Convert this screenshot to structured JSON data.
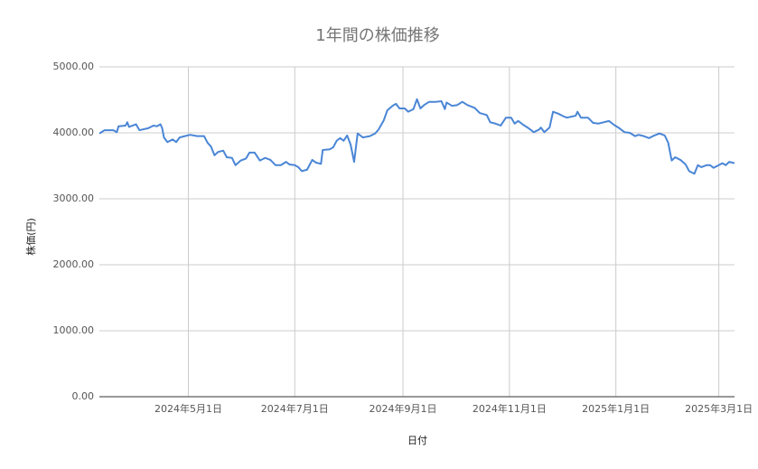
{
  "chart_data": {
    "type": "line",
    "title": "1年間の株価推移",
    "x_label": "日付",
    "y_label": "株価(円)",
    "x": [
      "2024-03-11",
      "2024-03-14",
      "2024-03-19",
      "2024-03-21",
      "2024-03-22",
      "2024-03-26",
      "2024-03-27",
      "2024-03-28",
      "2024-04-01",
      "2024-04-03",
      "2024-04-08",
      "2024-04-11",
      "2024-04-13",
      "2024-04-15",
      "2024-04-16",
      "2024-04-17",
      "2024-04-19",
      "2024-04-22",
      "2024-04-24",
      "2024-04-26",
      "2024-04-29",
      "2024-05-02",
      "2024-05-06",
      "2024-05-10",
      "2024-05-12",
      "2024-05-14",
      "2024-05-16",
      "2024-05-18",
      "2024-05-21",
      "2024-05-23",
      "2024-05-26",
      "2024-05-28",
      "2024-05-31",
      "2024-06-03",
      "2024-06-05",
      "2024-06-08",
      "2024-06-11",
      "2024-06-14",
      "2024-06-17",
      "2024-06-20",
      "2024-06-23",
      "2024-06-26",
      "2024-06-28",
      "2024-07-01",
      "2024-07-03",
      "2024-07-05",
      "2024-07-08",
      "2024-07-11",
      "2024-07-13",
      "2024-07-16",
      "2024-07-17",
      "2024-07-21",
      "2024-07-23",
      "2024-07-25",
      "2024-07-27",
      "2024-07-29",
      "2024-07-31",
      "2024-08-02",
      "2024-08-04",
      "2024-08-06",
      "2024-08-09",
      "2024-08-13",
      "2024-08-16",
      "2024-08-18",
      "2024-08-21",
      "2024-08-23",
      "2024-08-26",
      "2024-08-28",
      "2024-08-30",
      "2024-09-02",
      "2024-09-04",
      "2024-09-07",
      "2024-09-09",
      "2024-09-11",
      "2024-09-13",
      "2024-09-16",
      "2024-09-20",
      "2024-09-23",
      "2024-09-25",
      "2024-09-26",
      "2024-09-29",
      "2024-10-02",
      "2024-10-05",
      "2024-10-08",
      "2024-10-12",
      "2024-10-15",
      "2024-10-19",
      "2024-10-21",
      "2024-10-24",
      "2024-10-27",
      "2024-10-30",
      "2024-11-02",
      "2024-11-04",
      "2024-11-06",
      "2024-11-09",
      "2024-11-12",
      "2024-11-15",
      "2024-11-18",
      "2024-11-19",
      "2024-11-21",
      "2024-11-24",
      "2024-11-26",
      "2024-11-29",
      "2024-12-02",
      "2024-12-04",
      "2024-12-09",
      "2024-12-10",
      "2024-12-12",
      "2024-12-16",
      "2024-12-19",
      "2024-12-22",
      "2024-12-25",
      "2024-12-28",
      "2024-12-31",
      "2025-01-03",
      "2025-01-06",
      "2025-01-09",
      "2025-01-12",
      "2025-01-14",
      "2025-01-17",
      "2025-01-20",
      "2025-01-23",
      "2025-01-26",
      "2025-01-29",
      "2025-01-31",
      "2025-02-02",
      "2025-02-04",
      "2025-02-07",
      "2025-02-10",
      "2025-02-12",
      "2025-02-15",
      "2025-02-17",
      "2025-02-19",
      "2025-02-22",
      "2025-02-24",
      "2025-02-26",
      "2025-03-01",
      "2025-03-03",
      "2025-03-05",
      "2025-03-07",
      "2025-03-10"
    ],
    "series": [
      {
        "name": "株価",
        "color": "#4a86d6",
        "values": [
          3990,
          4040,
          4040,
          4010,
          4100,
          4110,
          4160,
          4090,
          4130,
          4040,
          4070,
          4110,
          4100,
          4130,
          4070,
          3930,
          3860,
          3900,
          3860,
          3930,
          3950,
          3970,
          3950,
          3950,
          3850,
          3790,
          3660,
          3710,
          3730,
          3630,
          3620,
          3510,
          3580,
          3610,
          3700,
          3700,
          3580,
          3620,
          3590,
          3510,
          3510,
          3560,
          3520,
          3510,
          3480,
          3420,
          3440,
          3590,
          3550,
          3530,
          3740,
          3750,
          3780,
          3880,
          3920,
          3880,
          3960,
          3820,
          3560,
          3990,
          3930,
          3950,
          3990,
          4050,
          4190,
          4340,
          4410,
          4440,
          4370,
          4370,
          4320,
          4360,
          4510,
          4370,
          4420,
          4470,
          4470,
          4480,
          4360,
          4460,
          4410,
          4420,
          4470,
          4420,
          4380,
          4300,
          4270,
          4160,
          4140,
          4110,
          4230,
          4230,
          4140,
          4180,
          4120,
          4070,
          4010,
          4050,
          4080,
          4010,
          4080,
          4320,
          4290,
          4250,
          4230,
          4260,
          4320,
          4230,
          4230,
          4150,
          4140,
          4160,
          4180,
          4120,
          4070,
          4010,
          4000,
          3950,
          3970,
          3950,
          3920,
          3960,
          3990,
          3960,
          3850,
          3580,
          3630,
          3590,
          3520,
          3420,
          3380,
          3510,
          3480,
          3510,
          3510,
          3470,
          3510,
          3540,
          3510,
          3560,
          3540
        ]
      }
    ],
    "xlim": [
      "2024-03-11",
      "2025-03-10"
    ],
    "xticks": [
      {
        "value": "2024-05-01",
        "label": "2024年5月1日"
      },
      {
        "value": "2024-07-01",
        "label": "2024年7月1日"
      },
      {
        "value": "2024-09-01",
        "label": "2024年9月1日"
      },
      {
        "value": "2024-11-01",
        "label": "2024年11月1日"
      },
      {
        "value": "2025-01-01",
        "label": "2025年1月1日"
      },
      {
        "value": "2025-03-01",
        "label": "2025年3月1日"
      }
    ],
    "ylim": [
      0,
      5000
    ],
    "yticks": [
      {
        "value": 0,
        "label": "0.00"
      },
      {
        "value": 1000,
        "label": "1000.00"
      },
      {
        "value": 2000,
        "label": "2000.00"
      },
      {
        "value": 3000,
        "label": "3000.00"
      },
      {
        "value": 4000,
        "label": "4000.00"
      },
      {
        "value": 5000,
        "label": "5000.00"
      }
    ],
    "grid": true
  }
}
